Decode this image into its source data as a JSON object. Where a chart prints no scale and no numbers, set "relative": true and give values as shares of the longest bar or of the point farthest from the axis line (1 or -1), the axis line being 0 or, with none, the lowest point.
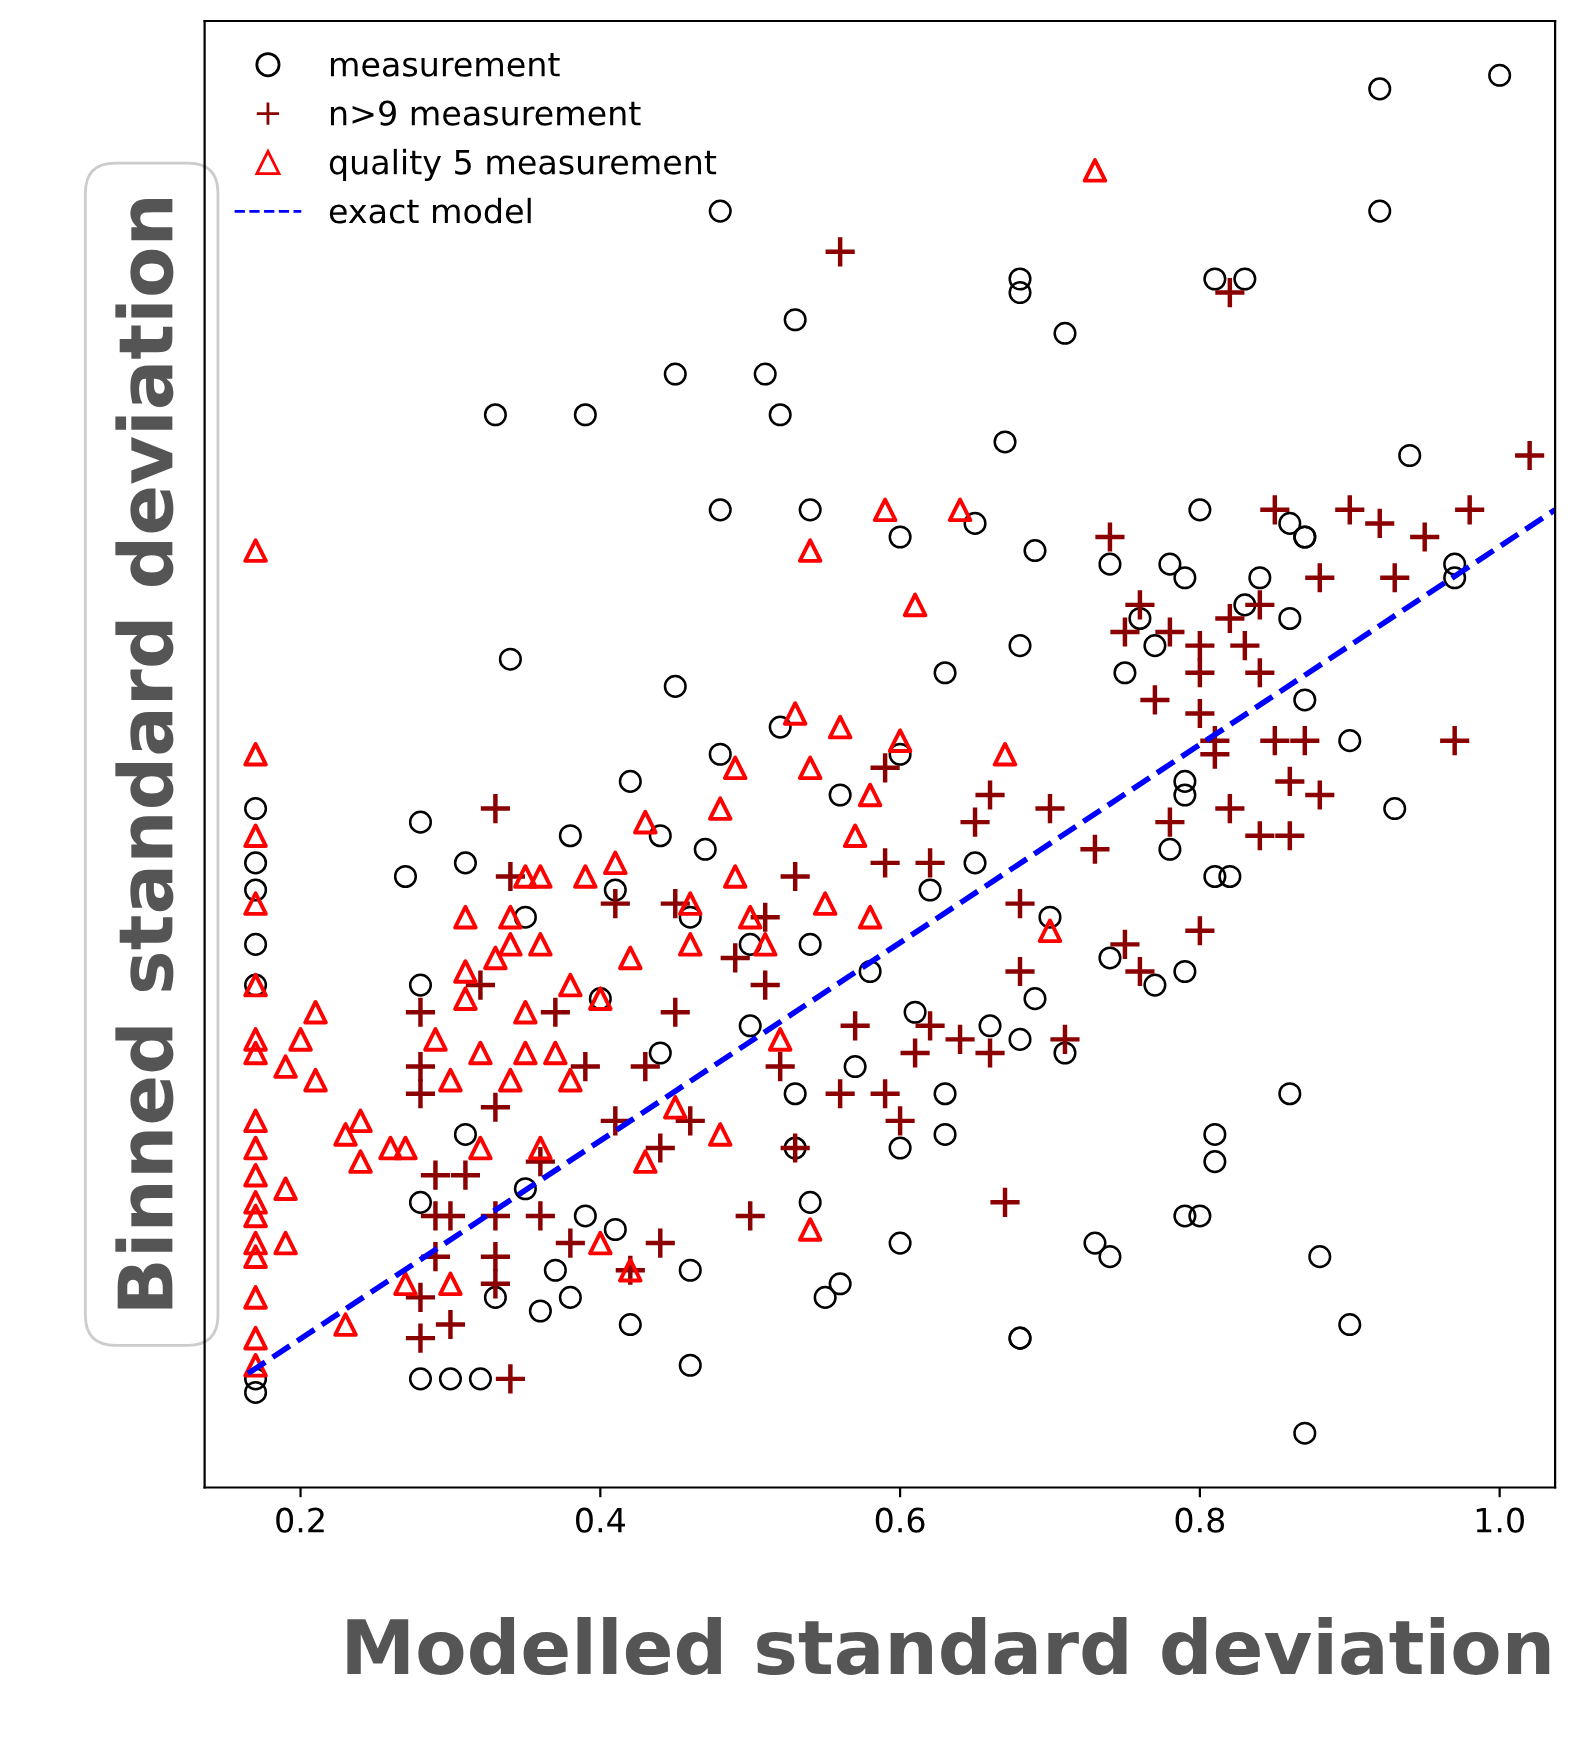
{
  "chart_data": {
    "type": "scatter",
    "xlabel": "Modelled standard deviation",
    "ylabel": "Binned standard deviation",
    "relative": true,
    "xlim": [
      0.136,
      1.037
    ],
    "xticks": [
      0.2,
      0.4,
      0.6,
      0.8,
      {
        "value": 1,
        "label": "1.0"
      }
    ],
    "tick_labels": "x",
    "legend": "top left",
    "grid": false,
    "series": [
      {
        "name": "measurement",
        "marker": "circle",
        "color": "#000000",
        "x": [
          0.92,
          1.0,
          0.48,
          0.92,
          0.68,
          0.81,
          0.83,
          0.68,
          0.53,
          0.71,
          0.45,
          0.51,
          0.33,
          0.39,
          0.52,
          0.67,
          0.94,
          0.34,
          0.48,
          0.54,
          0.6,
          0.65,
          0.69,
          0.8,
          0.86,
          0.87,
          0.97,
          0.78,
          0.74,
          0.76,
          0.83,
          0.87,
          0.93,
          0.81,
          0.79,
          0.86,
          0.81,
          0.81,
          0.79,
          0.8,
          0.88,
          0.9,
          0.87,
          0.74,
          0.68,
          0.46,
          0.46,
          0.55,
          0.56,
          0.6,
          0.68,
          0.73,
          0.54,
          0.6,
          0.63,
          0.63,
          0.53,
          0.57,
          0.53,
          0.69,
          0.68,
          0.61,
          0.17,
          0.17,
          0.28,
          0.3,
          0.32,
          0.36,
          0.42,
          0.33,
          0.38,
          0.37,
          0.41,
          0.39,
          0.28,
          0.31,
          0.35,
          0.28,
          0.28,
          0.27,
          0.31,
          0.17,
          0.17,
          0.17,
          0.17,
          0.17,
          0.47,
          0.44,
          0.41,
          0.46,
          0.5,
          0.58,
          0.62,
          0.65,
          0.7,
          0.66,
          0.71,
          0.74,
          0.56,
          0.6,
          0.63,
          0.68,
          0.52,
          0.45,
          0.48,
          0.42,
          0.38,
          0.35,
          0.4,
          0.44,
          0.5,
          0.54,
          0.97,
          0.87,
          0.86,
          0.79,
          0.84,
          0.75,
          0.77,
          0.9,
          0.82,
          0.78,
          0.79,
          0.79,
          0.77
        ],
        "values": [
          0.99,
          1.0,
          0.9,
          0.9,
          0.85,
          0.85,
          0.85,
          0.84,
          0.82,
          0.81,
          0.78,
          0.78,
          0.75,
          0.75,
          0.75,
          0.73,
          0.72,
          0.57,
          0.68,
          0.68,
          0.66,
          0.67,
          0.65,
          0.68,
          0.67,
          0.66,
          0.64,
          0.64,
          0.64,
          0.6,
          0.61,
          0.54,
          0.46,
          0.41,
          0.48,
          0.25,
          0.22,
          0.2,
          0.16,
          0.16,
          0.13,
          0.08,
          0.0,
          0.13,
          0.07,
          0.05,
          0.12,
          0.1,
          0.11,
          0.14,
          0.07,
          0.14,
          0.17,
          0.21,
          0.22,
          0.25,
          0.21,
          0.27,
          0.25,
          0.32,
          0.29,
          0.31,
          0.03,
          0.04,
          0.04,
          0.04,
          0.04,
          0.09,
          0.08,
          0.1,
          0.1,
          0.12,
          0.15,
          0.16,
          0.17,
          0.22,
          0.18,
          0.33,
          0.45,
          0.41,
          0.42,
          0.46,
          0.42,
          0.4,
          0.36,
          0.33,
          0.43,
          0.44,
          0.4,
          0.38,
          0.36,
          0.34,
          0.4,
          0.42,
          0.38,
          0.3,
          0.28,
          0.35,
          0.47,
          0.5,
          0.56,
          0.58,
          0.52,
          0.55,
          0.5,
          0.48,
          0.44,
          0.38,
          0.32,
          0.28,
          0.3,
          0.36,
          0.63,
          0.66,
          0.6,
          0.63,
          0.63,
          0.56,
          0.58,
          0.51,
          0.41,
          0.43,
          0.47,
          0.34,
          0.33
        ]
      },
      {
        "name": "n>9 measurement",
        "marker": "cross",
        "color": "#8b0000",
        "x": [
          0.82,
          0.56,
          1.02,
          0.98,
          0.95,
          0.92,
          0.9,
          0.85,
          0.88,
          0.93,
          0.84,
          0.82,
          0.83,
          0.84,
          0.8,
          0.8,
          0.78,
          0.75,
          0.76,
          0.74,
          0.77,
          0.8,
          0.81,
          0.85,
          0.87,
          0.97,
          0.86,
          0.88,
          0.86,
          0.84,
          0.82,
          0.78,
          0.8,
          0.75,
          0.76,
          0.81,
          0.67,
          0.5,
          0.44,
          0.56,
          0.59,
          0.6,
          0.53,
          0.61,
          0.62,
          0.64,
          0.66,
          0.71,
          0.57,
          0.52,
          0.49,
          0.51,
          0.45,
          0.46,
          0.44,
          0.59,
          0.62,
          0.65,
          0.68,
          0.68,
          0.7,
          0.73,
          0.53,
          0.45,
          0.59,
          0.66,
          0.51,
          0.33,
          0.34,
          0.32,
          0.28,
          0.28,
          0.28,
          0.33,
          0.29,
          0.29,
          0.29,
          0.28,
          0.28,
          0.3,
          0.33,
          0.33,
          0.33,
          0.36,
          0.34,
          0.3,
          0.31,
          0.36,
          0.37,
          0.38,
          0.42,
          0.41,
          0.39,
          0.43,
          0.41
        ],
        "values": [
          0.84,
          0.87,
          0.72,
          0.68,
          0.66,
          0.67,
          0.68,
          0.68,
          0.63,
          0.63,
          0.61,
          0.6,
          0.58,
          0.56,
          0.56,
          0.58,
          0.59,
          0.59,
          0.61,
          0.66,
          0.54,
          0.53,
          0.51,
          0.51,
          0.51,
          0.51,
          0.48,
          0.47,
          0.44,
          0.44,
          0.46,
          0.45,
          0.37,
          0.36,
          0.34,
          0.5,
          0.17,
          0.16,
          0.14,
          0.25,
          0.25,
          0.23,
          0.21,
          0.28,
          0.3,
          0.29,
          0.28,
          0.29,
          0.3,
          0.27,
          0.35,
          0.33,
          0.31,
          0.23,
          0.21,
          0.42,
          0.42,
          0.45,
          0.39,
          0.34,
          0.46,
          0.43,
          0.41,
          0.39,
          0.49,
          0.47,
          0.38,
          0.46,
          0.41,
          0.33,
          0.31,
          0.27,
          0.25,
          0.24,
          0.19,
          0.16,
          0.13,
          0.1,
          0.07,
          0.08,
          0.16,
          0.13,
          0.11,
          0.16,
          0.04,
          0.16,
          0.19,
          0.2,
          0.31,
          0.14,
          0.12,
          0.39,
          0.27,
          0.27,
          0.23
        ]
      },
      {
        "name": "quality 5 measurement",
        "marker": "triangle",
        "color": "#ff0000",
        "x": [
          0.73,
          0.17,
          0.17,
          0.17,
          0.17,
          0.17,
          0.17,
          0.17,
          0.17,
          0.17,
          0.17,
          0.17,
          0.17,
          0.17,
          0.17,
          0.17,
          0.17,
          0.17,
          0.21,
          0.2,
          0.19,
          0.21,
          0.19,
          0.19,
          0.23,
          0.23,
          0.24,
          0.24,
          0.26,
          0.27,
          0.27,
          0.3,
          0.29,
          0.3,
          0.31,
          0.31,
          0.31,
          0.34,
          0.35,
          0.36,
          0.39,
          0.41,
          0.43,
          0.34,
          0.36,
          0.33,
          0.35,
          0.32,
          0.34,
          0.35,
          0.37,
          0.38,
          0.4,
          0.42,
          0.38,
          0.32,
          0.36,
          0.4,
          0.42,
          0.43,
          0.59,
          0.64,
          0.54,
          0.61,
          0.53,
          0.56,
          0.6,
          0.49,
          0.54,
          0.48,
          0.58,
          0.57,
          0.49,
          0.46,
          0.46,
          0.5,
          0.51,
          0.55,
          0.58,
          0.7,
          0.52,
          0.45,
          0.48,
          0.54,
          0.67
        ],
        "values": [
          0.93,
          0.65,
          0.5,
          0.44,
          0.39,
          0.33,
          0.28,
          0.23,
          0.19,
          0.16,
          0.13,
          0.1,
          0.07,
          0.05,
          0.29,
          0.21,
          0.17,
          0.14,
          0.31,
          0.29,
          0.27,
          0.26,
          0.18,
          0.14,
          0.08,
          0.22,
          0.23,
          0.2,
          0.21,
          0.21,
          0.11,
          0.11,
          0.29,
          0.26,
          0.32,
          0.34,
          0.38,
          0.38,
          0.41,
          0.41,
          0.41,
          0.42,
          0.45,
          0.36,
          0.36,
          0.35,
          0.31,
          0.28,
          0.26,
          0.28,
          0.28,
          0.33,
          0.32,
          0.35,
          0.26,
          0.21,
          0.21,
          0.14,
          0.12,
          0.2,
          0.68,
          0.68,
          0.65,
          0.61,
          0.53,
          0.52,
          0.51,
          0.49,
          0.49,
          0.46,
          0.47,
          0.44,
          0.41,
          0.39,
          0.36,
          0.38,
          0.36,
          0.39,
          0.38,
          0.37,
          0.29,
          0.24,
          0.22,
          0.15,
          0.5
        ]
      },
      {
        "name": "exact model",
        "type": "line",
        "line_style": "dashed",
        "color": "#0000ff",
        "x": [
          0.165,
          1.037
        ],
        "values": [
          0.044,
          0.68
        ]
      }
    ]
  }
}
